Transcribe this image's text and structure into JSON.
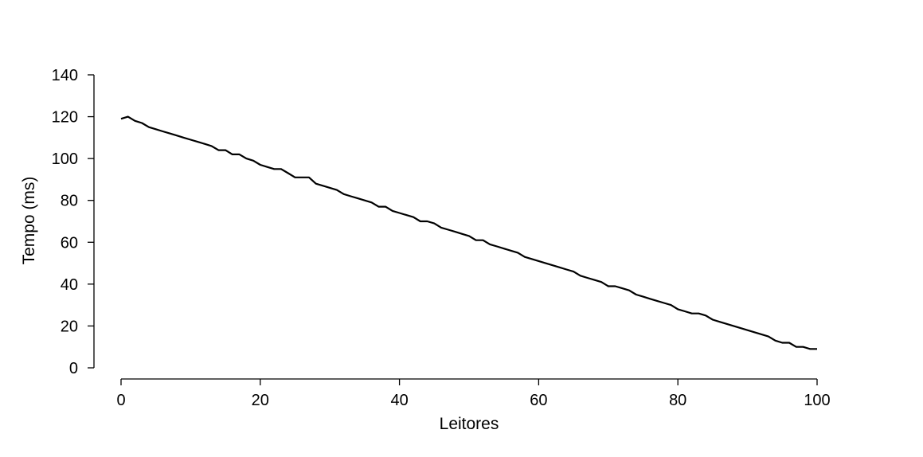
{
  "chart_data": {
    "type": "line",
    "title": "",
    "xlabel": "Leitores",
    "ylabel": "Tempo (ms)",
    "xlim": [
      0,
      100
    ],
    "ylim": [
      0,
      140
    ],
    "xticks": [
      0,
      20,
      40,
      60,
      80,
      100
    ],
    "yticks": [
      0,
      20,
      40,
      60,
      80,
      100,
      120,
      140
    ],
    "grid": false,
    "legend": "none",
    "line_color": "#000000",
    "series": [
      {
        "x": [
          0,
          1,
          2,
          3,
          4,
          5,
          6,
          7,
          8,
          9,
          10,
          11,
          12,
          13,
          14,
          15,
          16,
          17,
          18,
          19,
          20,
          21,
          22,
          23,
          24,
          25,
          26,
          27,
          28,
          29,
          30,
          31,
          32,
          33,
          34,
          35,
          36,
          37,
          38,
          39,
          40,
          41,
          42,
          43,
          44,
          45,
          46,
          47,
          48,
          49,
          50,
          51,
          52,
          53,
          54,
          55,
          56,
          57,
          58,
          59,
          60,
          61,
          62,
          63,
          64,
          65,
          66,
          67,
          68,
          69,
          70,
          71,
          72,
          73,
          74,
          75,
          76,
          77,
          78,
          79,
          80,
          81,
          82,
          83,
          84,
          85,
          86,
          87,
          88,
          89,
          90,
          91,
          92,
          93,
          94,
          95,
          96,
          97,
          98,
          99,
          100
        ],
        "values": [
          119,
          120,
          118,
          117,
          115,
          114,
          113,
          112,
          111,
          110,
          109,
          108,
          107,
          106,
          104,
          104,
          102,
          102,
          100,
          99,
          97,
          96,
          95,
          95,
          93,
          91,
          91,
          91,
          88,
          87,
          86,
          85,
          83,
          82,
          81,
          80,
          79,
          77,
          77,
          75,
          74,
          73,
          72,
          70,
          70,
          69,
          67,
          66,
          65,
          64,
          63,
          61,
          61,
          59,
          58,
          57,
          56,
          55,
          53,
          52,
          51,
          50,
          49,
          48,
          47,
          46,
          44,
          43,
          42,
          41,
          39,
          39,
          38,
          37,
          35,
          34,
          33,
          32,
          31,
          30,
          28,
          27,
          26,
          26,
          25,
          23,
          22,
          21,
          20,
          19,
          18,
          17,
          16,
          15,
          13,
          12,
          12,
          10,
          10,
          9,
          9
        ]
      }
    ]
  }
}
